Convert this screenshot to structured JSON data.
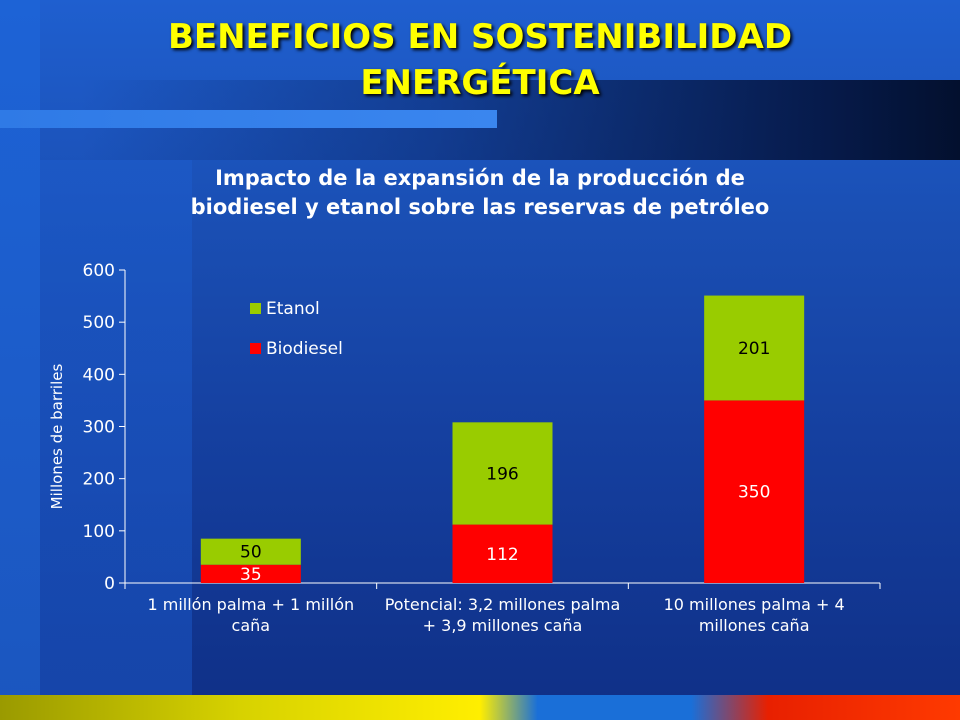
{
  "slide": {
    "title_line1": "BENEFICIOS EN SOSTENIBILIDAD",
    "title_line2": "ENERGÉTICA"
  },
  "colors": {
    "title": "#ffff00",
    "etanol": "#99cc00",
    "biodiesel": "#ff0000",
    "text": "#ffffff",
    "axis": "#ffffff"
  },
  "chart_data": {
    "type": "bar",
    "stacked": true,
    "title_line1": "Impacto de la expansión de la producción de",
    "title_line2": "biodiesel y etanol sobre las reservas de petróleo",
    "ylabel": "Millones de barriles",
    "xlabel": "",
    "ylim": [
      0,
      600
    ],
    "yticks": [
      0,
      100,
      200,
      300,
      400,
      500,
      600
    ],
    "categories": [
      [
        "1 millón palma + 1 millón",
        "caña"
      ],
      [
        "Potencial: 3,2 millones palma",
        "+ 3,9 millones caña"
      ],
      [
        "10 millones palma + 4",
        "millones caña"
      ]
    ],
    "series": [
      {
        "name": "Biodiesel",
        "values": [
          35,
          112,
          350
        ],
        "labels": [
          "35",
          "112",
          "350"
        ]
      },
      {
        "name": "Etanol",
        "values": [
          50,
          196,
          201
        ],
        "labels": [
          "50",
          "196",
          "201"
        ]
      }
    ],
    "legend": {
      "placement": "top-left",
      "order": [
        "Etanol",
        "Biodiesel"
      ]
    },
    "grid": false
  }
}
